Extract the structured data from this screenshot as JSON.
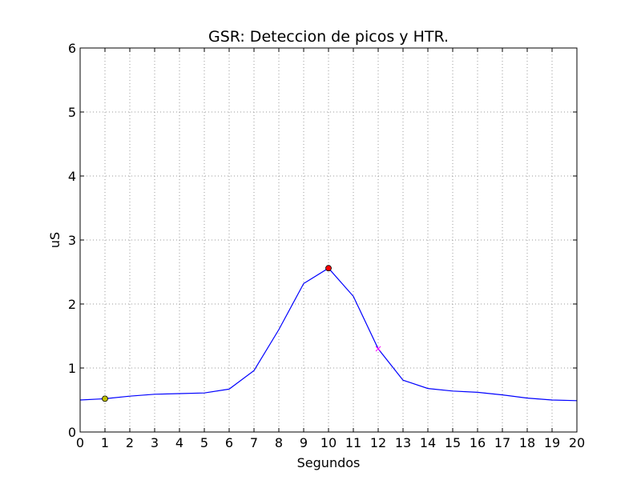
{
  "chart_data": {
    "type": "line",
    "title": "GSR: Deteccion de picos y HTR.",
    "xlabel": "Segundos",
    "ylabel": "uS",
    "xlim": [
      0,
      20
    ],
    "ylim": [
      0,
      6
    ],
    "grid": true,
    "xticks": [
      "0",
      "1",
      "2",
      "3",
      "4",
      "5",
      "6",
      "7",
      "8",
      "9",
      "10",
      "11",
      "12",
      "13",
      "14",
      "15",
      "16",
      "17",
      "18",
      "19",
      "20"
    ],
    "yticks": [
      "0",
      "1",
      "2",
      "3",
      "4",
      "5",
      "6"
    ],
    "series": [
      {
        "color": "#0000ff",
        "x": [
          0,
          1,
          2,
          3,
          4,
          5,
          6,
          7,
          8,
          9,
          10,
          11,
          12,
          13,
          14,
          15,
          16,
          17,
          18,
          19,
          20
        ],
        "y": [
          0.5,
          0.52,
          0.56,
          0.59,
          0.6,
          0.61,
          0.67,
          0.96,
          1.6,
          2.32,
          2.56,
          2.12,
          1.3,
          0.81,
          0.68,
          0.64,
          0.62,
          0.58,
          0.53,
          0.5,
          0.49
        ]
      }
    ],
    "markers": [
      {
        "name": "start",
        "x": 1,
        "y": 0.52,
        "shape": "circle",
        "color": "#bfbf00"
      },
      {
        "name": "peak",
        "x": 10,
        "y": 2.56,
        "shape": "circle",
        "color": "#ff0000"
      },
      {
        "name": "htr",
        "x": 12,
        "y": 1.3,
        "shape": "x",
        "color": "#ff00ff"
      }
    ]
  }
}
